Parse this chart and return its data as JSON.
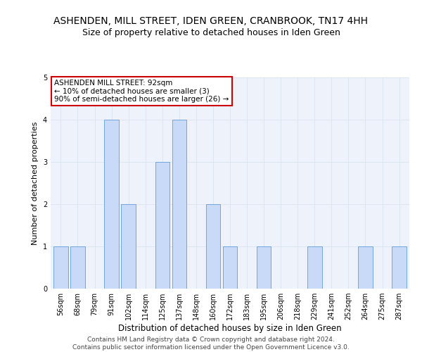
{
  "title": "ASHENDEN, MILL STREET, IDEN GREEN, CRANBROOK, TN17 4HH",
  "subtitle": "Size of property relative to detached houses in Iden Green",
  "xlabel": "Distribution of detached houses by size in Iden Green",
  "ylabel": "Number of detached properties",
  "bar_labels": [
    "56sqm",
    "68sqm",
    "79sqm",
    "91sqm",
    "102sqm",
    "114sqm",
    "125sqm",
    "137sqm",
    "148sqm",
    "160sqm",
    "172sqm",
    "183sqm",
    "195sqm",
    "206sqm",
    "218sqm",
    "229sqm",
    "241sqm",
    "252sqm",
    "264sqm",
    "275sqm",
    "287sqm"
  ],
  "bar_values": [
    1,
    1,
    0,
    4,
    2,
    0,
    3,
    4,
    0,
    2,
    1,
    0,
    1,
    0,
    0,
    1,
    0,
    0,
    1,
    0,
    1
  ],
  "bar_color": "#c9daf8",
  "bar_edge_color": "#6fa8dc",
  "ylim": [
    0,
    5
  ],
  "yticks": [
    0,
    1,
    2,
    3,
    4,
    5
  ],
  "grid_color": "#d8e4f0",
  "bg_color": "#ffffff",
  "plot_bg_color": "#edf2fb",
  "annotation_title": "ASHENDEN MILL STREET: 92sqm",
  "annotation_line1": "← 10% of detached houses are smaller (3)",
  "annotation_line2": "90% of semi-detached houses are larger (26) →",
  "annotation_box_edge": "#cc0000",
  "footer_line1": "Contains HM Land Registry data © Crown copyright and database right 2024.",
  "footer_line2": "Contains public sector information licensed under the Open Government Licence v3.0.",
  "title_fontsize": 10,
  "subtitle_fontsize": 9,
  "xlabel_fontsize": 8.5,
  "ylabel_fontsize": 8,
  "tick_fontsize": 7,
  "annotation_fontsize": 7.5,
  "footer_fontsize": 6.5
}
